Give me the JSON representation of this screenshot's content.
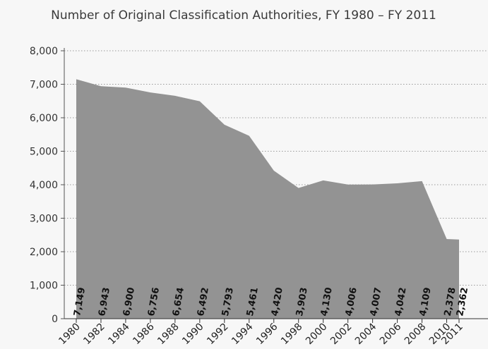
{
  "chart_data": {
    "type": "area",
    "title": "Number of Original Classification Authorities, FY 1980 – FY 2011",
    "xlabel": "",
    "ylabel": "",
    "ylim": [
      0,
      8000
    ],
    "yticks": [
      0,
      1000,
      2000,
      3000,
      4000,
      5000,
      6000,
      7000,
      8000
    ],
    "ytick_labels": [
      "0",
      "1,000",
      "2,000",
      "3,000",
      "4,000",
      "5,000",
      "6,000",
      "7,000",
      "8,000"
    ],
    "categories": [
      "1980",
      "1982",
      "1984",
      "1986",
      "1988",
      "1990",
      "1992",
      "1994",
      "1996",
      "1998",
      "2000",
      "2002",
      "2004",
      "2006",
      "2008",
      "2010",
      "2011"
    ],
    "values": [
      7149,
      6943,
      6900,
      6756,
      6654,
      6492,
      5793,
      5461,
      4420,
      3903,
      4130,
      4006,
      4007,
      4042,
      4109,
      2378,
      2362
    ],
    "data_labels": [
      "7,149",
      "6,943",
      "6,900",
      "6,756",
      "6,654",
      "6,492",
      "5,793",
      "5,461",
      "4,420",
      "3,903",
      "4,130",
      "4,006",
      "4,007",
      "4,042",
      "4,109",
      "2,378",
      "2,362"
    ],
    "grid": "horizontal dotted",
    "legend": "none",
    "area_color": "#939393"
  }
}
